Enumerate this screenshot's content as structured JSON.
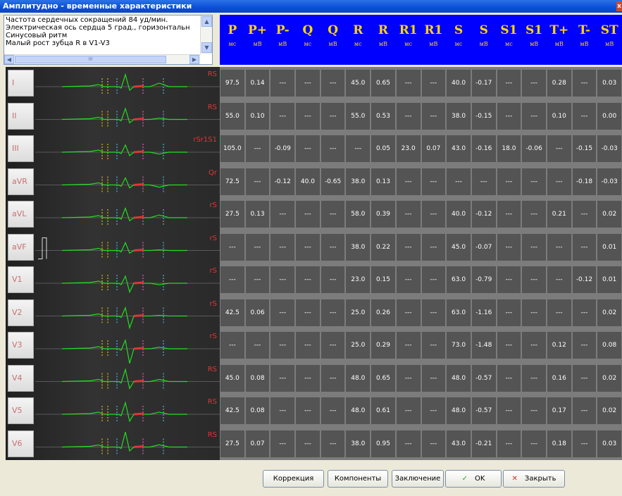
{
  "window": {
    "title": "Амплитудно - временные характеристики",
    "close_glyph": "x"
  },
  "info": {
    "lines": [
      "Частота сердечных сокращений 84 уд/мин.",
      "Электрическая ось сердца 5 град., горизонтальн",
      "Синусовый ритм",
      "Малый рост зубца R в V1-V3"
    ],
    "scroll_up": "▲",
    "scroll_down": "▼",
    "scroll_left": "◀",
    "scroll_right": "▶",
    "scroll_grip": "III"
  },
  "columns": [
    {
      "sym": "P",
      "unit": "мс"
    },
    {
      "sym": "P+",
      "unit": "мВ"
    },
    {
      "sym": "P-",
      "unit": "мВ"
    },
    {
      "sym": "Q",
      "unit": "мс"
    },
    {
      "sym": "Q",
      "unit": "мВ"
    },
    {
      "sym": "R",
      "unit": "мс"
    },
    {
      "sym": "R",
      "unit": "мВ"
    },
    {
      "sym": "R1",
      "unit": "мс"
    },
    {
      "sym": "R1",
      "unit": "мВ"
    },
    {
      "sym": "S",
      "unit": "мс"
    },
    {
      "sym": "S",
      "unit": "мВ"
    },
    {
      "sym": "S1",
      "unit": "мс"
    },
    {
      "sym": "S1",
      "unit": "мВ"
    },
    {
      "sym": "T+",
      "unit": "мВ"
    },
    {
      "sym": "T-",
      "unit": "мВ"
    },
    {
      "sym": "ST",
      "unit": "мВ"
    }
  ],
  "leads": [
    {
      "name": "I",
      "morph": "RS",
      "values": [
        "97.5",
        "0.14",
        "---",
        "---",
        "---",
        "45.0",
        "0.65",
        "---",
        "---",
        "40.0",
        "-0.17",
        "---",
        "---",
        "0.28",
        "---",
        "0.03"
      ]
    },
    {
      "name": "II",
      "morph": "RS",
      "values": [
        "55.0",
        "0.10",
        "---",
        "---",
        "---",
        "55.0",
        "0.53",
        "---",
        "---",
        "38.0",
        "-0.15",
        "---",
        "---",
        "0.10",
        "---",
        "0.00"
      ]
    },
    {
      "name": "III",
      "morph": "rSr1S1",
      "values": [
        "105.0",
        "---",
        "-0.09",
        "---",
        "---",
        "---",
        "0.05",
        "23.0",
        "0.07",
        "43.0",
        "-0.16",
        "18.0",
        "-0.06",
        "---",
        "-0.15",
        "-0.03"
      ]
    },
    {
      "name": "aVR",
      "morph": "Qr",
      "values": [
        "72.5",
        "---",
        "-0.12",
        "40.0",
        "-0.65",
        "38.0",
        "0.13",
        "---",
        "---",
        "---",
        "---",
        "---",
        "---",
        "---",
        "-0.18",
        "-0.03"
      ]
    },
    {
      "name": "aVL",
      "morph": "rS",
      "values": [
        "27.5",
        "0.13",
        "---",
        "---",
        "---",
        "58.0",
        "0.39",
        "---",
        "---",
        "40.0",
        "-0.12",
        "---",
        "---",
        "0.21",
        "---",
        "0.02"
      ]
    },
    {
      "name": "aVF",
      "morph": "rS",
      "values": [
        "---",
        "---",
        "---",
        "---",
        "---",
        "38.0",
        "0.22",
        "---",
        "---",
        "45.0",
        "-0.07",
        "---",
        "---",
        "---",
        "---",
        "0.01"
      ]
    },
    {
      "name": "V1",
      "morph": "rS",
      "values": [
        "---",
        "---",
        "---",
        "---",
        "---",
        "23.0",
        "0.15",
        "---",
        "---",
        "63.0",
        "-0.79",
        "---",
        "---",
        "---",
        "-0.12",
        "0.01"
      ]
    },
    {
      "name": "V2",
      "morph": "rS",
      "values": [
        "42.5",
        "0.06",
        "---",
        "---",
        "---",
        "25.0",
        "0.26",
        "---",
        "---",
        "63.0",
        "-1.16",
        "---",
        "---",
        "---",
        "---",
        "0.02"
      ]
    },
    {
      "name": "V3",
      "morph": "rS",
      "values": [
        "---",
        "---",
        "---",
        "---",
        "---",
        "25.0",
        "0.29",
        "---",
        "---",
        "73.0",
        "-1.48",
        "---",
        "---",
        "0.12",
        "---",
        "0.08"
      ]
    },
    {
      "name": "V4",
      "morph": "RS",
      "values": [
        "45.0",
        "0.08",
        "---",
        "---",
        "---",
        "48.0",
        "0.65",
        "---",
        "---",
        "48.0",
        "-0.57",
        "---",
        "---",
        "0.16",
        "---",
        "0.02"
      ]
    },
    {
      "name": "V5",
      "morph": "RS",
      "values": [
        "42.5",
        "0.08",
        "---",
        "---",
        "---",
        "48.0",
        "0.61",
        "---",
        "---",
        "48.0",
        "-0.57",
        "---",
        "---",
        "0.17",
        "---",
        "0.02"
      ]
    },
    {
      "name": "V6",
      "morph": "RS",
      "values": [
        "27.5",
        "0.07",
        "---",
        "---",
        "---",
        "38.0",
        "0.95",
        "---",
        "---",
        "43.0",
        "-0.21",
        "---",
        "---",
        "0.18",
        "---",
        "0.03"
      ]
    }
  ],
  "buttons": {
    "correction": "Коррекция",
    "components": "Компоненты",
    "conclusion": "Заключение",
    "ok": "OK",
    "close": "Закрыть",
    "ok_icon": "✓",
    "close_icon": "✕"
  },
  "colors": {
    "header_bg": "#0000ff",
    "header_text": "#ffd800",
    "trace": "#22dd22",
    "marker": "#e03535"
  }
}
